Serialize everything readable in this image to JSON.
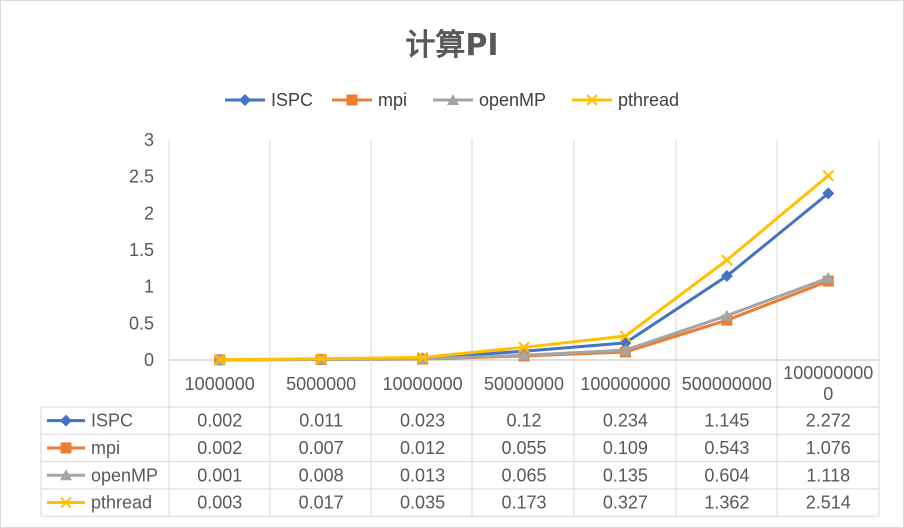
{
  "chart_data": {
    "type": "line",
    "title": "计算PI",
    "xlabel": "",
    "ylabel": "",
    "categories": [
      "1000000",
      "5000000",
      "10000000",
      "50000000",
      "100000000",
      "500000000",
      "1000000000"
    ],
    "category_display": [
      [
        "1000000"
      ],
      [
        "5000000"
      ],
      [
        "10000000"
      ],
      [
        "50000000"
      ],
      [
        "100000000"
      ],
      [
        "500000000"
      ],
      [
        "100000000",
        "0"
      ]
    ],
    "series": [
      {
        "name": "ISPC",
        "color": "#4472c4",
        "marker": "diamond",
        "values": [
          0.002,
          0.011,
          0.023,
          0.12,
          0.234,
          1.145,
          2.272
        ]
      },
      {
        "name": "mpi",
        "color": "#ed7d31",
        "marker": "square",
        "values": [
          0.002,
          0.007,
          0.012,
          0.055,
          0.109,
          0.543,
          1.076
        ]
      },
      {
        "name": "openMP",
        "color": "#a5a5a5",
        "marker": "triangle",
        "values": [
          0.001,
          0.008,
          0.013,
          0.065,
          0.135,
          0.604,
          1.118
        ]
      },
      {
        "name": "pthread",
        "color": "#ffc000",
        "marker": "x",
        "values": [
          0.003,
          0.017,
          0.035,
          0.173,
          0.327,
          1.362,
          2.514
        ]
      }
    ],
    "table_values": [
      [
        "0.002",
        "0.011",
        "0.023",
        "0.12",
        "0.234",
        "1.145",
        "2.272"
      ],
      [
        "0.002",
        "0.007",
        "0.012",
        "0.055",
        "0.109",
        "0.543",
        "1.076"
      ],
      [
        "0.001",
        "0.008",
        "0.013",
        "0.065",
        "0.135",
        "0.604",
        "1.118"
      ],
      [
        "0.003",
        "0.017",
        "0.035",
        "0.173",
        "0.327",
        "1.362",
        "2.514"
      ]
    ],
    "ylim": [
      0,
      3
    ],
    "yticks": [
      0,
      0.5,
      1,
      1.5,
      2,
      2.5,
      3
    ],
    "ytick_labels": [
      "0",
      "0.5",
      "1",
      "1.5",
      "2",
      "2.5",
      "3"
    ],
    "grid": "vertical",
    "legend": "top",
    "data_table": true
  }
}
